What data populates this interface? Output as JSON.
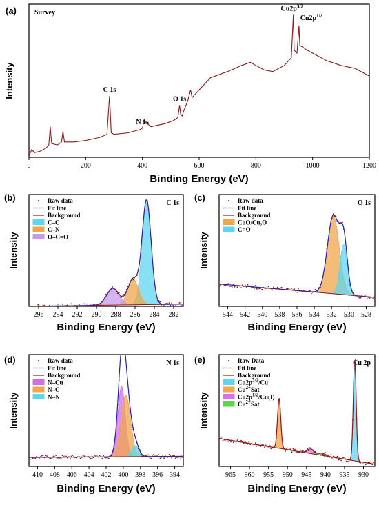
{
  "figure": {
    "panels": [
      {
        "id": "a",
        "panel_label": "(a)",
        "plot_title": "Survey",
        "xlabel": "Binding Energy (eV)",
        "ylabel": "Intensity",
        "xlim": [
          0,
          1200
        ],
        "x_reversed": false,
        "xticks": [
          0,
          200,
          400,
          600,
          800,
          1000,
          1200
        ],
        "annotations": [
          {
            "text": "C 1s",
            "x": 284
          },
          {
            "text": "N 1s",
            "x": 400
          },
          {
            "text": "O 1s",
            "x": 531
          },
          {
            "text": "Cu2p",
            "sup": "3/2",
            "x": 932
          },
          {
            "text": "Cu2p",
            "sup": "1/2",
            "x": 952
          }
        ],
        "legend": []
      },
      {
        "id": "b",
        "panel_label": "(b)",
        "plot_title": "C 1s",
        "xlabel": "Binding Energy (eV)",
        "ylabel": "Intensity",
        "xlim": [
          297,
          281
        ],
        "x_reversed": true,
        "xticks": [
          296,
          294,
          292,
          290,
          288,
          286,
          284,
          282
        ],
        "annotations": [],
        "legend": [
          {
            "label": "Raw data",
            "kind": "dot",
            "color": "#8b1a1a"
          },
          {
            "label": "Fit line",
            "kind": "line",
            "color": "#1f1fb4"
          },
          {
            "label": "Background",
            "kind": "line",
            "color": "#8b1a1a"
          },
          {
            "label": "C–C",
            "kind": "fill",
            "color": "#5fd6f0"
          },
          {
            "label": "C–N",
            "kind": "fill",
            "color": "#f0a64a"
          },
          {
            "label": "O–C=O",
            "kind": "fill",
            "color": "#c79ae6"
          }
        ]
      },
      {
        "id": "c",
        "panel_label": "(c)",
        "plot_title": "O 1s",
        "xlabel": "Binding Energy (eV)",
        "ylabel": "Intensity",
        "xlim": [
          545,
          527
        ],
        "x_reversed": true,
        "xticks": [
          544,
          542,
          540,
          538,
          536,
          534,
          532,
          530,
          528
        ],
        "annotations": [],
        "legend": [
          {
            "label": "Raw data",
            "kind": "dot",
            "color": "#8b1a1a"
          },
          {
            "label": "Fit line",
            "kind": "line",
            "color": "#1f1fb4"
          },
          {
            "label": "Background",
            "kind": "line",
            "color": "#8b1a1a"
          },
          {
            "label": "CuO/Cu₂O",
            "kind": "fill",
            "color": "#f0a64a"
          },
          {
            "label": "C=O",
            "kind": "fill",
            "color": "#5fd6f0"
          }
        ]
      },
      {
        "id": "d",
        "panel_label": "(d)",
        "plot_title": "N 1s",
        "xlabel": "Binding Energy (eV)",
        "ylabel": "Intensity",
        "xlim": [
          411,
          393
        ],
        "x_reversed": true,
        "xticks": [
          410,
          408,
          406,
          404,
          402,
          400,
          398,
          396,
          394
        ],
        "annotations": [],
        "legend": [
          {
            "label": "Raw data",
            "kind": "dot",
            "color": "#8b1a1a"
          },
          {
            "label": "Fit line",
            "kind": "line",
            "color": "#1f1fb4"
          },
          {
            "label": "Background",
            "kind": "line",
            "color": "#8b1a1a"
          },
          {
            "label": "N–Cu",
            "kind": "fill",
            "color": "#d16ee6"
          },
          {
            "label": "N–C",
            "kind": "fill",
            "color": "#f0a64a"
          },
          {
            "label": "N–N",
            "kind": "fill",
            "color": "#5fd6f0"
          }
        ]
      },
      {
        "id": "e",
        "panel_label": "(e)",
        "plot_title": "Cu 2p",
        "xlabel": "Binding Energy (eV)",
        "ylabel": "Intensity",
        "xlim": [
          968,
          927
        ],
        "x_reversed": true,
        "xticks": [
          965,
          960,
          955,
          950,
          945,
          940,
          935,
          930
        ],
        "annotations": [],
        "legend": [
          {
            "label": "Raw Data",
            "kind": "dot",
            "color": "#8b1a1a"
          },
          {
            "label": "Fit line",
            "kind": "line",
            "color": "#8b1a1a"
          },
          {
            "label": "Background",
            "kind": "line",
            "color": "#8b1a1a"
          },
          {
            "label": "Cu2p",
            "sup": "3/2",
            "tail": "/Cu",
            "kind": "fill",
            "color": "#5fd6f0"
          },
          {
            "label": "Cu",
            "sup": "2+",
            "tail": "Sat",
            "kind": "fill",
            "color": "#f0a64a"
          },
          {
            "label": "Cu2p",
            "sup": "1/2",
            "tail": "/Cu(I)",
            "kind": "fill",
            "color": "#e06ef0"
          },
          {
            "label": "Cu",
            "sup": "2+",
            "tail": "Sat",
            "kind": "fill",
            "color": "#5cd64a"
          }
        ]
      }
    ]
  },
  "chart_data": [
    {
      "type": "line",
      "title": "Survey",
      "xlabel": "Binding Energy (eV)",
      "ylabel": "Intensity",
      "xlim": [
        0,
        1200
      ],
      "ylim": [
        0,
        1
      ],
      "series": [
        {
          "color": "#8b1a1a",
          "x": [
            0,
            10,
            20,
            40,
            60,
            70,
            75,
            80,
            100,
            115,
            120,
            125,
            160,
            200,
            250,
            275,
            284,
            290,
            300,
            350,
            390,
            400,
            405,
            430,
            480,
            510,
            525,
            531,
            535,
            540,
            545,
            560,
            570,
            575,
            580,
            600,
            640,
            700,
            750,
            780,
            800,
            830,
            860,
            900,
            925,
            932,
            935,
            945,
            952,
            955,
            965,
            980,
            1000,
            1050,
            1100,
            1150,
            1200
          ],
          "y": [
            0.01,
            0.05,
            0.03,
            0.04,
            0.06,
            0.08,
            0.2,
            0.09,
            0.08,
            0.1,
            0.17,
            0.1,
            0.1,
            0.11,
            0.13,
            0.15,
            0.4,
            0.16,
            0.15,
            0.16,
            0.18,
            0.19,
            0.24,
            0.2,
            0.22,
            0.24,
            0.26,
            0.34,
            0.28,
            0.27,
            0.3,
            0.37,
            0.44,
            0.39,
            0.4,
            0.44,
            0.52,
            0.56,
            0.6,
            0.62,
            0.6,
            0.57,
            0.56,
            0.6,
            0.65,
            0.93,
            0.7,
            0.68,
            0.86,
            0.73,
            0.72,
            0.7,
            0.68,
            0.63,
            0.6,
            0.58,
            0.53
          ]
        }
      ]
    },
    {
      "type": "line",
      "title": "C 1s",
      "xlabel": "Binding Energy (eV)",
      "ylabel": "Intensity",
      "xlim": [
        297,
        281
      ],
      "ylim": [
        0,
        1
      ],
      "background": {
        "x": [
          297,
          281
        ],
        "y": [
          0.0,
          0.02
        ],
        "color": "#8b1a1a"
      },
      "components": [
        {
          "name": "C–C",
          "center": 284.8,
          "height": 0.93,
          "fwhm": 1.1,
          "color": "#5fd6f0"
        },
        {
          "name": "C–N",
          "center": 286.2,
          "height": 0.23,
          "fwhm": 1.3,
          "color": "#f0a64a"
        },
        {
          "name": "O–C=O",
          "center": 288.3,
          "height": 0.15,
          "fwhm": 1.5,
          "color": "#c79ae6"
        }
      ],
      "series": [
        {
          "name": "Fit line",
          "color": "#1f1fb4",
          "sum_of_components": true
        }
      ]
    },
    {
      "type": "line",
      "title": "O 1s",
      "xlabel": "Binding Energy (eV)",
      "ylabel": "Intensity",
      "xlim": [
        545,
        527
      ],
      "ylim": [
        0,
        1
      ],
      "background": {
        "x": [
          545,
          527
        ],
        "y": [
          0.2,
          0.08
        ],
        "color": "#8b1a1a"
      },
      "components": [
        {
          "name": "CuO/Cu₂O",
          "center": 531.8,
          "height": 0.7,
          "fwhm": 1.6,
          "color": "#f0a64a"
        },
        {
          "name": "C=O",
          "center": 530.6,
          "height": 0.45,
          "fwhm": 1.0,
          "color": "#5fd6f0"
        }
      ],
      "series": [
        {
          "name": "Fit line",
          "color": "#1f1fb4",
          "sum_of_components": true
        }
      ]
    },
    {
      "type": "line",
      "title": "N 1s",
      "xlabel": "Binding Energy (eV)",
      "ylabel": "Intensity",
      "xlim": [
        411,
        393
      ],
      "ylim": [
        0,
        1
      ],
      "background": {
        "x": [
          411,
          393
        ],
        "y": [
          0.08,
          0.09
        ],
        "color": "#8b1a1a"
      },
      "components": [
        {
          "name": "N–Cu",
          "center": 400.2,
          "height": 0.63,
          "fwhm": 1.0,
          "color": "#d16ee6"
        },
        {
          "name": "N–C",
          "center": 399.7,
          "height": 0.55,
          "fwhm": 1.3,
          "color": "#f0a64a"
        },
        {
          "name": "N–N",
          "center": 398.6,
          "height": 0.1,
          "fwhm": 1.0,
          "color": "#5fd6f0"
        }
      ],
      "series": [
        {
          "name": "Fit line",
          "color": "#1f1fb4",
          "sum_of_components": true
        }
      ]
    },
    {
      "type": "line",
      "title": "Cu 2p",
      "xlabel": "Binding Energy (eV)",
      "ylabel": "Intensity",
      "xlim": [
        968,
        927
      ],
      "ylim": [
        0,
        1
      ],
      "background": {
        "x": [
          968,
          927
        ],
        "y": [
          0.25,
          0.02
        ],
        "color": "#8b1a1a"
      },
      "components": [
        {
          "name": "Cu2p3/2/Cu",
          "center": 932.3,
          "height": 0.92,
          "fwhm": 0.9,
          "color": "#5fd6f0"
        },
        {
          "name": "Cu2+Sat",
          "center": 952.2,
          "height": 0.45,
          "fwhm": 1.0,
          "color": "#f0a64a"
        },
        {
          "name": "Cu2p1/2/Cu(I)",
          "center": 944.0,
          "height": 0.04,
          "fwhm": 2.0,
          "color": "#e06ef0"
        },
        {
          "name": "Cu2+Sat",
          "center": 941.0,
          "height": 0.02,
          "fwhm": 2.5,
          "color": "#5cd64a"
        }
      ],
      "series": [
        {
          "name": "Fit line",
          "color": "#8b1a1a",
          "sum_of_components": true
        }
      ]
    }
  ]
}
